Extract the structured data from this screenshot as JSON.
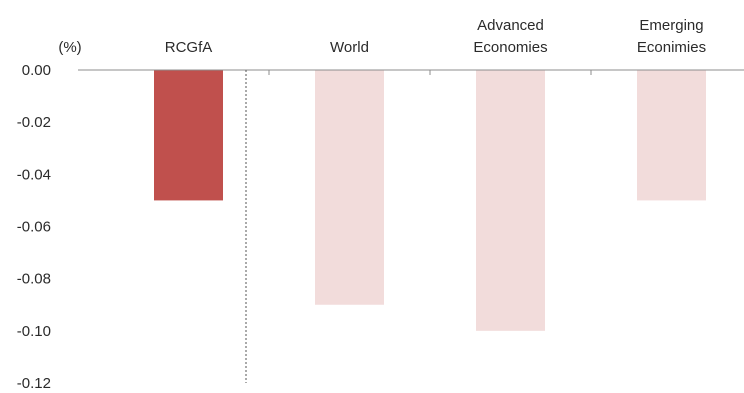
{
  "chart_data": {
    "type": "bar",
    "unit_label": "(%)",
    "categories": [
      [
        "RCGfA"
      ],
      [
        "World"
      ],
      [
        "Advanced",
        "Economies"
      ],
      [
        "Emerging",
        "Econimies"
      ]
    ],
    "values": [
      -0.05,
      -0.09,
      -0.1,
      -0.05
    ],
    "bar_colors": [
      "#c0504d",
      "#f2dcdb",
      "#f2dcdb",
      "#f2dcdb"
    ],
    "ylim": [
      -0.12,
      0.0
    ],
    "yticks": [
      "0.00",
      "-0.02",
      "-0.04",
      "-0.06",
      "-0.08",
      "-0.10",
      "-0.12"
    ],
    "title": "",
    "xlabel": "",
    "ylabel": "",
    "grid": false,
    "legend": "none",
    "separator_after_category": 1
  }
}
